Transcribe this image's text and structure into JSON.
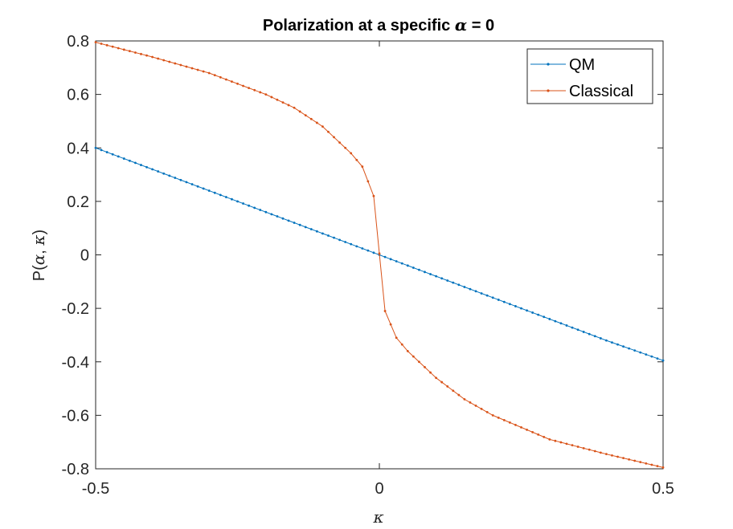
{
  "chart_data": {
    "type": "line",
    "title_prefix": "Polarization at a specific ",
    "title_symbol": "α",
    "title_suffix": " = 0",
    "xlabel": "κ",
    "ylabel_prefix": "P(",
    "ylabel_symbol_1": "α",
    "ylabel_sep": ", ",
    "ylabel_symbol_2": "κ",
    "ylabel_suffix": ")",
    "xlim": [
      -0.5,
      0.5
    ],
    "ylim": [
      -0.8,
      0.8
    ],
    "xticks": [
      -0.5,
      0,
      0.5
    ],
    "xtick_labels": [
      "-0.5",
      "0",
      "0.5"
    ],
    "yticks": [
      -0.8,
      -0.6,
      -0.4,
      -0.2,
      0,
      0.2,
      0.4,
      0.6,
      0.8
    ],
    "ytick_labels": [
      "-0.8",
      "-0.6",
      "-0.4",
      "-0.2",
      "0",
      "0.2",
      "0.4",
      "0.6",
      "0.8"
    ],
    "grid": false,
    "legend_position": "top-right",
    "series": [
      {
        "name": "QM",
        "color": "#0072BD",
        "x": [
          -0.5,
          -0.4,
          -0.3,
          -0.2,
          -0.1,
          0,
          0.1,
          0.2,
          0.3,
          0.4,
          0.5
        ],
        "y": [
          0.4,
          0.32,
          0.24,
          0.16,
          0.08,
          0,
          -0.08,
          -0.16,
          -0.24,
          -0.32,
          -0.395
        ]
      },
      {
        "name": "Classical",
        "color": "#D95319",
        "x": [
          -0.5,
          -0.4,
          -0.3,
          -0.2,
          -0.15,
          -0.1,
          -0.07,
          -0.05,
          -0.03,
          -0.01,
          0.01,
          0.03,
          0.05,
          0.07,
          0.1,
          0.15,
          0.2,
          0.3,
          0.4,
          0.5
        ],
        "y": [
          0.795,
          0.74,
          0.68,
          0.6,
          0.55,
          0.48,
          0.42,
          0.38,
          0.33,
          0.22,
          -0.21,
          -0.31,
          -0.36,
          -0.4,
          -0.46,
          -0.54,
          -0.6,
          -0.69,
          -0.745,
          -0.795
        ]
      }
    ]
  }
}
